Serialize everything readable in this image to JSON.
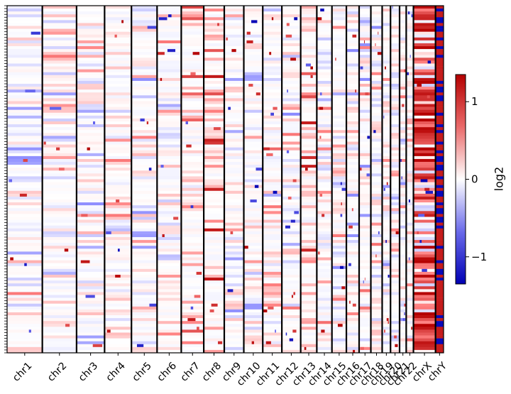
{
  "chart_data": {
    "type": "heatmap",
    "title": "",
    "xlabel": "",
    "ylabel": "",
    "chromosomes": [
      "chr1",
      "chr2",
      "chr3",
      "chr4",
      "chr5",
      "chr6",
      "chr7",
      "chr8",
      "chr9",
      "chr10",
      "chr11",
      "chr12",
      "chr13",
      "chr14",
      "chr15",
      "chr16",
      "chr17",
      "chr18",
      "chr19",
      "chr20",
      "chr21",
      "chr22",
      "chrX",
      "chrY"
    ],
    "chromosome_lengths_mb": [
      249,
      242,
      198,
      190,
      181,
      171,
      159,
      145,
      138,
      134,
      135,
      133,
      114,
      107,
      102,
      90,
      83,
      80,
      59,
      64,
      47,
      51,
      156,
      57
    ],
    "n_samples": 120,
    "colorbar": {
      "label": "log2",
      "range": [
        -1.35,
        1.35
      ],
      "ticks": [
        -1,
        0,
        1
      ],
      "tick_labels": [
        "−1",
        "0",
        "1"
      ],
      "colormap": "seismic-like",
      "colors": {
        "low": "#0000b4",
        "mid": "#ffffff",
        "high": "#b40000"
      }
    },
    "summary": {
      "chrX_pattern": "mostly strong gain (red)",
      "chrY_pattern": "alternating strong loss (blue) and gain (red) per sample",
      "autosomes_pattern": "sparse low-amplitude gains and losses, gains more frequent on chr7, chr8, chr13"
    }
  }
}
